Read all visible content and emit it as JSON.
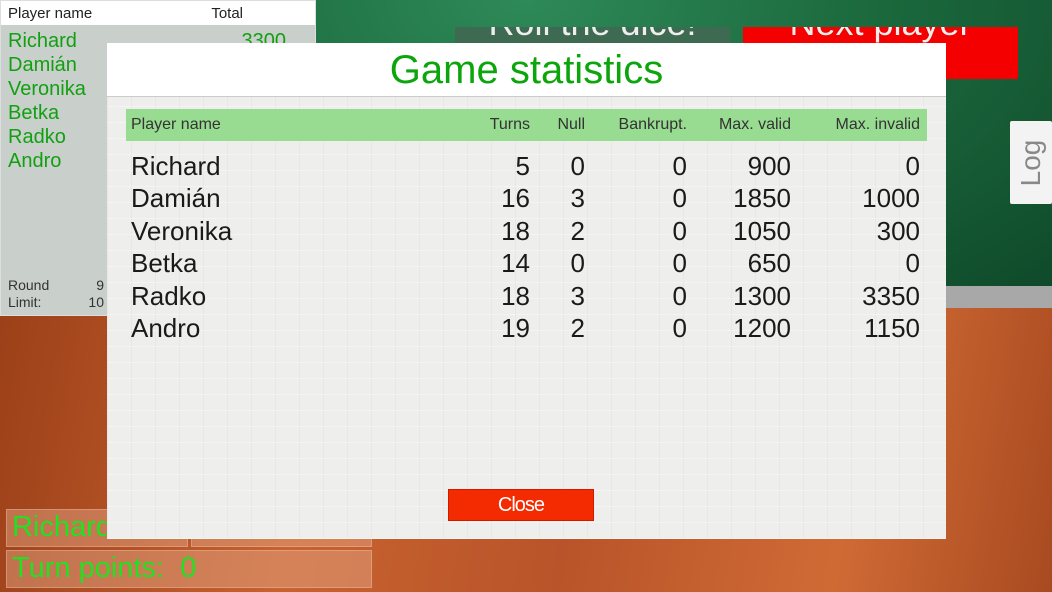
{
  "scoreboard": {
    "header_name": "Player name",
    "header_total": "Total",
    "players": [
      {
        "name": "Richard",
        "total": "3300"
      },
      {
        "name": "Damián"
      },
      {
        "name": "Veronika"
      },
      {
        "name": "Betka"
      },
      {
        "name": "Radko"
      },
      {
        "name": "Andro"
      }
    ],
    "round_label": "Round",
    "round_value": "9",
    "limit_label": "Limit:",
    "limit_value": "10"
  },
  "buttons": {
    "roll": "Roll the dice!",
    "next": "Next player",
    "log": "Log"
  },
  "status": {
    "current_player": "Richard",
    "turn_points_label": "Turn points:",
    "turn_points_value": "0"
  },
  "colors": {
    "felt": "#1c6a3e",
    "accent_green": "#0ca50c",
    "close_red": "#f42a00"
  },
  "modal": {
    "title": "Game statistics",
    "close": "Close",
    "columns": [
      "Player name",
      "Turns",
      "Null",
      "Bankrupt.",
      "Max. valid",
      "Max. invalid"
    ],
    "rows": [
      [
        "Richard",
        "5",
        "0",
        "0",
        "900",
        "0"
      ],
      [
        "Damián",
        "16",
        "3",
        "0",
        "1850",
        "1000"
      ],
      [
        "Veronika",
        "18",
        "2",
        "0",
        "1050",
        "300"
      ],
      [
        "Betka",
        "14",
        "0",
        "0",
        "650",
        "0"
      ],
      [
        "Radko",
        "18",
        "3",
        "0",
        "1300",
        "3350"
      ],
      [
        "Andro",
        "19",
        "2",
        "0",
        "1200",
        "1150"
      ]
    ]
  }
}
